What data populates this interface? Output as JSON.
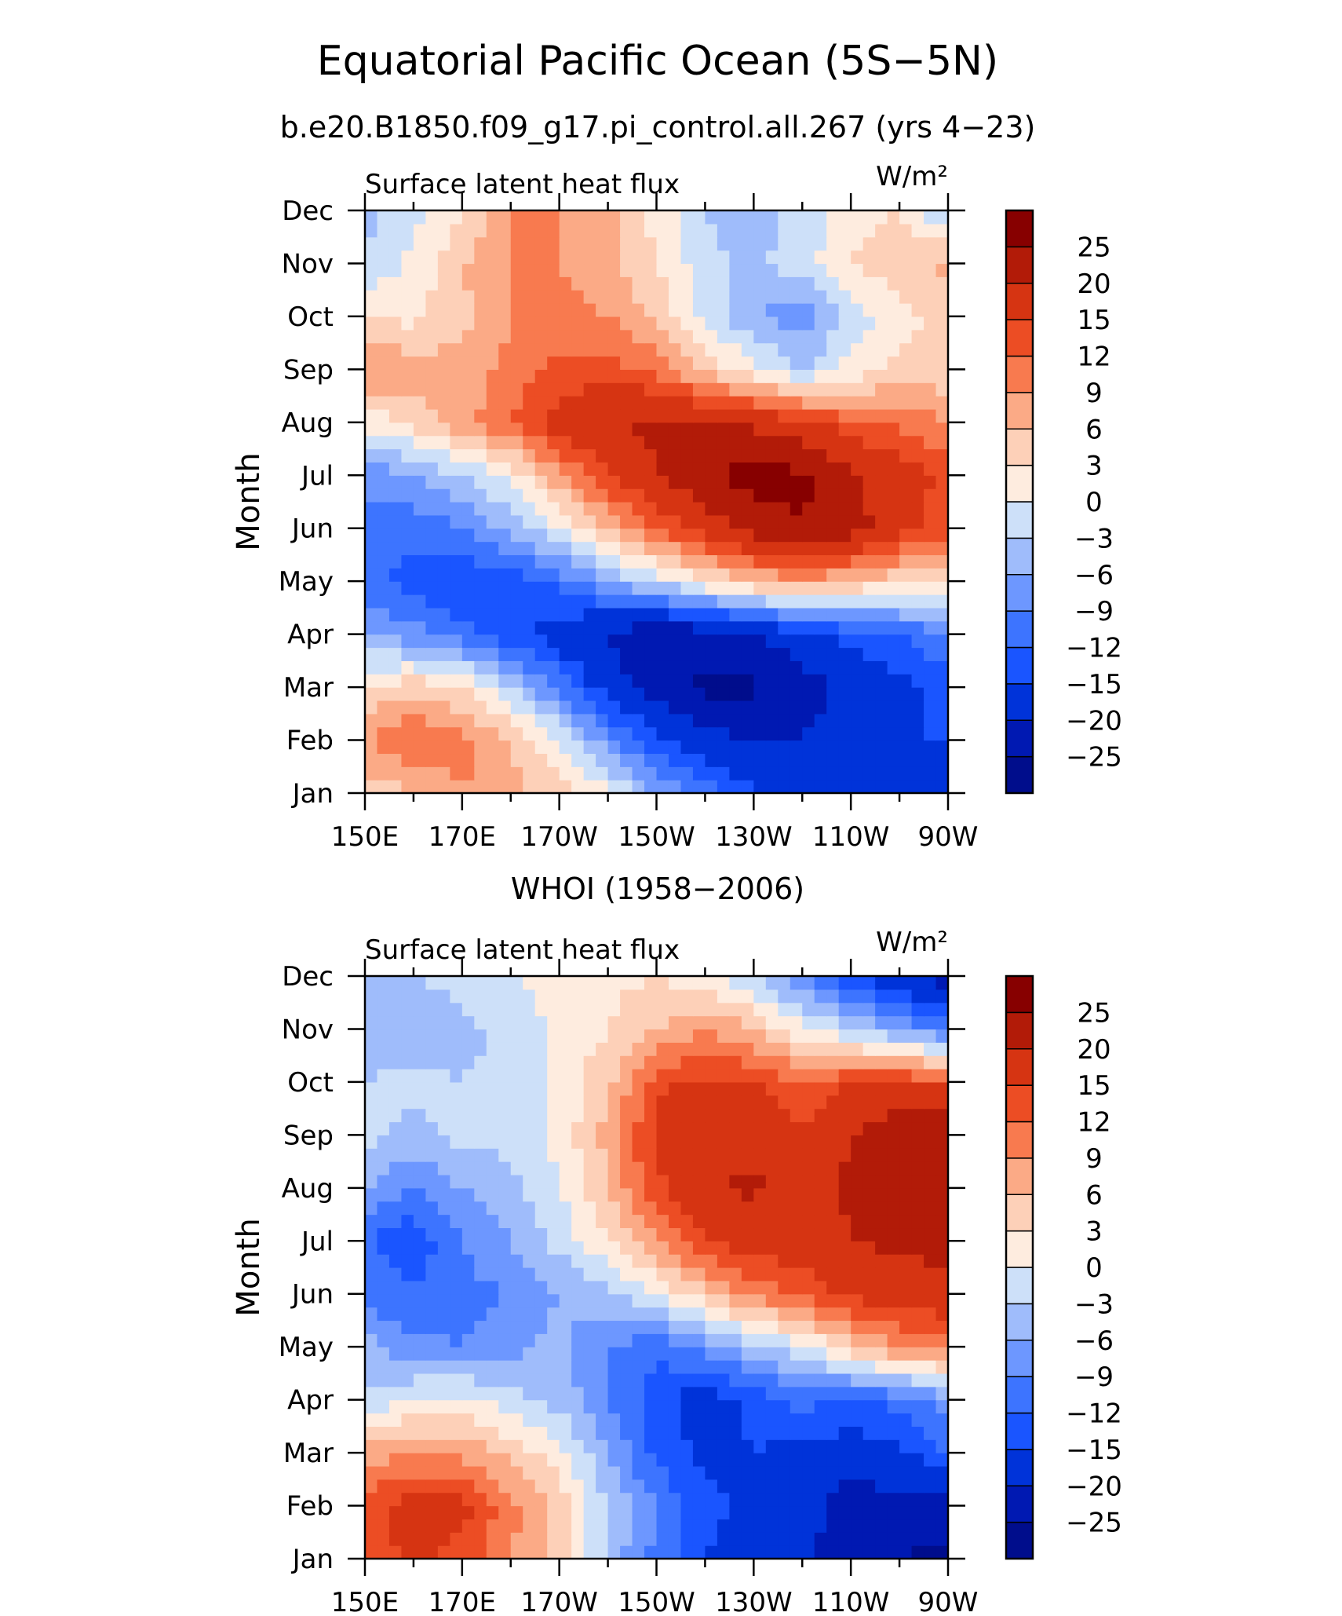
{
  "figure": {
    "title": "Equatorial Pacific Ocean (5S−5N)",
    "subtitle": "b.e20.B1850.f09_g17.pi_control.all.267 (yrs 4−23)"
  },
  "chart_data": [
    {
      "type": "heatmap",
      "name_label": "",
      "panel_title": "",
      "variable": "Surface latent heat flux",
      "units": "W/m²",
      "xlabel": "",
      "ylabel": "Month",
      "x_ticks": [
        "150E",
        "170E",
        "170W",
        "150W",
        "130W",
        "110W",
        "90W"
      ],
      "x_tick_values": [
        150,
        170,
        190,
        210,
        230,
        250,
        270
      ],
      "x": [
        150,
        160,
        170,
        180,
        190,
        200,
        210,
        220,
        230,
        240,
        250,
        260,
        270
      ],
      "y_ticks": [
        "Jan",
        "Feb",
        "Mar",
        "Apr",
        "May",
        "Jun",
        "Jul",
        "Aug",
        "Sep",
        "Oct",
        "Nov",
        "Dec"
      ],
      "y": [
        "Jan",
        "Feb",
        "Mar",
        "Apr",
        "May",
        "Jun",
        "Jul",
        "Aug",
        "Sep",
        "Oct",
        "Nov",
        "Dec"
      ],
      "levels": [
        -25,
        -20,
        -15,
        -12,
        -9,
        -6,
        -3,
        0,
        3,
        6,
        9,
        12,
        15,
        20,
        25
      ],
      "colorbar_labels": [
        "25",
        "20",
        "15",
        "12",
        "9",
        "6",
        "3",
        "0",
        "−3",
        "−6",
        "−9",
        "−12",
        "−15",
        "−20",
        "−25"
      ],
      "colors": [
        "#000d8c",
        "#0019b2",
        "#0033d9",
        "#1a55ff",
        "#3d74ff",
        "#6d97ff",
        "#9fbcfb",
        "#cde0f9",
        "#feecdf",
        "#fdd0b8",
        "#fbaa86",
        "#f87a4f",
        "#ec4d24",
        "#d63412",
        "#b21b08",
        "#870000"
      ],
      "z": [
        [
          4,
          6,
          9,
          7,
          4,
          1,
          -6,
          -10,
          -14,
          -17,
          -18,
          -19,
          -20
        ],
        [
          9,
          12,
          10,
          6,
          0,
          -8,
          -14,
          -18,
          -20,
          -20,
          -17,
          -15,
          -15
        ],
        [
          3,
          5,
          3,
          -3,
          -10,
          -17,
          -22,
          -26,
          -26,
          -22,
          -19,
          -16,
          -14
        ],
        [
          -6,
          -8,
          -11,
          -14,
          -17,
          -21,
          -24,
          -23,
          -20,
          -17,
          -14,
          -12,
          -9
        ],
        [
          -11,
          -13,
          -15,
          -14,
          -11,
          -6,
          -2,
          3,
          6,
          8,
          6,
          4,
          2
        ],
        [
          -10,
          -11,
          -9,
          -5,
          0,
          6,
          12,
          17,
          22,
          25,
          22,
          17,
          13
        ],
        [
          -8,
          -6,
          -3,
          1,
          8,
          15,
          20,
          24,
          27,
          26,
          21,
          17,
          14
        ],
        [
          1,
          4,
          8,
          12,
          17,
          20,
          21,
          20,
          19,
          16,
          13,
          11,
          9
        ],
        [
          9,
          8,
          7,
          10,
          13,
          13,
          11,
          5,
          1,
          -3,
          1,
          4,
          4
        ],
        [
          4,
          2,
          5,
          9,
          10,
          9,
          5,
          -1,
          -6,
          -8,
          -2,
          2,
          4
        ],
        [
          -3,
          1,
          6,
          9,
          9,
          7,
          3,
          -2,
          -4,
          -1,
          3,
          5,
          7
        ],
        [
          -4,
          -1,
          2,
          9,
          9,
          7,
          2,
          -3,
          -5,
          -2,
          1,
          3,
          -4
        ]
      ]
    },
    {
      "type": "heatmap",
      "name_label": "WHOI (1958−2006)",
      "panel_title": "WHOI (1958−2006)",
      "variable": "Surface latent heat flux",
      "units": "W/m²",
      "xlabel": "",
      "ylabel": "Month",
      "x_ticks": [
        "150E",
        "170E",
        "170W",
        "150W",
        "130W",
        "110W",
        "90W"
      ],
      "x_tick_values": [
        150,
        170,
        190,
        210,
        230,
        250,
        270
      ],
      "x": [
        150,
        160,
        170,
        180,
        190,
        200,
        210,
        220,
        230,
        240,
        250,
        260,
        270
      ],
      "y_ticks": [
        "Jan",
        "Feb",
        "Mar",
        "Apr",
        "May",
        "Jun",
        "Jul",
        "Aug",
        "Sep",
        "Oct",
        "Nov",
        "Dec"
      ],
      "y": [
        "Jan",
        "Feb",
        "Mar",
        "Apr",
        "May",
        "Jun",
        "Jul",
        "Aug",
        "Sep",
        "Oct",
        "Nov",
        "Dec"
      ],
      "levels": [
        -25,
        -20,
        -15,
        -12,
        -9,
        -6,
        -3,
        0,
        3,
        6,
        9,
        12,
        15,
        20,
        25
      ],
      "colorbar_labels": [
        "25",
        "20",
        "15",
        "12",
        "9",
        "6",
        "3",
        "0",
        "−3",
        "−6",
        "−9",
        "−12",
        "−15",
        "−20",
        "−25"
      ],
      "colors": [
        "#000d8c",
        "#0019b2",
        "#0033d9",
        "#1a55ff",
        "#3d74ff",
        "#6d97ff",
        "#9fbcfb",
        "#cde0f9",
        "#feecdf",
        "#fdd0b8",
        "#fbaa86",
        "#f87a4f",
        "#ec4d24",
        "#d63412",
        "#b21b08",
        "#870000"
      ],
      "z": [
        [
          12,
          16,
          14,
          9,
          4,
          -4,
          -10,
          -15,
          -17,
          -19,
          -22,
          -25,
          -27
        ],
        [
          14,
          17,
          16,
          10,
          5,
          -3,
          -9,
          -14,
          -16,
          -18,
          -23,
          -21,
          -22
        ],
        [
          7,
          9,
          8,
          5,
          1,
          -6,
          -13,
          -16,
          -15,
          -16,
          -17,
          -16,
          -12
        ],
        [
          -2,
          0,
          1,
          -2,
          -4,
          -9,
          -14,
          -17,
          -14,
          -11,
          -13,
          -11,
          -8
        ],
        [
          -5,
          -8,
          -9,
          -7,
          -5,
          -9,
          -11,
          -8,
          -4,
          -1,
          5,
          9,
          11
        ],
        [
          -10,
          -12,
          -10,
          -9,
          -6,
          -4,
          0,
          5,
          10,
          13,
          16,
          17,
          18
        ],
        [
          -12,
          -14,
          -9,
          -6,
          -2,
          3,
          9,
          15,
          17,
          17,
          20,
          21,
          22
        ],
        [
          -5,
          -10,
          -6,
          -4,
          0,
          6,
          14,
          19,
          21,
          16,
          21,
          22,
          23
        ],
        [
          -2,
          -4,
          -2,
          -2,
          1,
          7,
          16,
          20,
          18,
          15,
          20,
          24,
          24
        ],
        [
          -3,
          -2,
          -3,
          -2,
          1,
          5,
          14,
          16,
          15,
          12,
          15,
          15,
          14
        ],
        [
          -6,
          -5,
          -4,
          -2,
          1,
          3,
          6,
          9,
          6,
          1,
          -3,
          -7,
          -10
        ],
        [
          -4,
          -3,
          -2,
          0,
          1,
          2,
          3,
          1,
          -3,
          -9,
          -14,
          -18,
          -23
        ]
      ]
    }
  ]
}
